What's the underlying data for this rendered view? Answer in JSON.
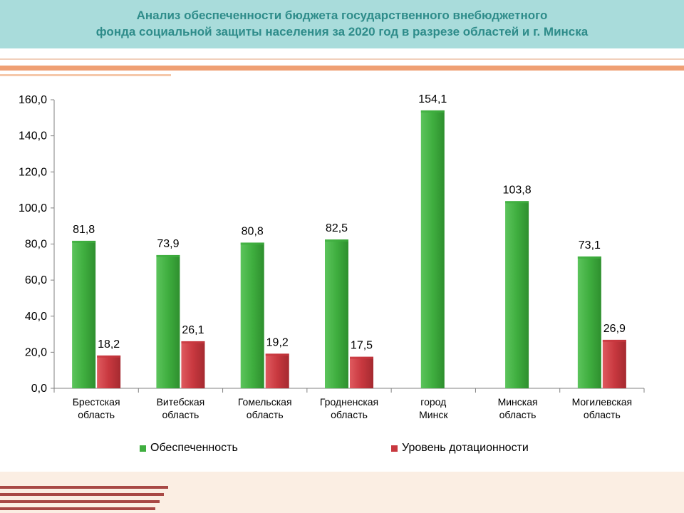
{
  "header": {
    "title_line1": "Анализ обеспеченности бюджета государственного внебюджетного",
    "title_line2": "фонда социальной защиты населения за 2020 год в разрезе областей и г. Минска"
  },
  "colors": {
    "header_bg": "#a9dcdb",
    "title_text": "#2e8c8a",
    "series_green": "#3fae3f",
    "series_red": "#c8383f",
    "accent_orange": "#ef9f73",
    "accent_dark_red": "#a84845"
  },
  "chart_data": {
    "type": "bar",
    "categories": [
      [
        "Брестская",
        "область"
      ],
      [
        "Витебская",
        "область"
      ],
      [
        "Гомельская",
        "область"
      ],
      [
        "Гродненская",
        "область"
      ],
      [
        "город",
        "Минск"
      ],
      [
        "Минская",
        "область"
      ],
      [
        "Могилевская",
        "область"
      ]
    ],
    "series": [
      {
        "name": "Обеспеченность",
        "color": "#3fae3f",
        "values": [
          81.8,
          73.9,
          80.8,
          82.5,
          154.1,
          103.8,
          73.1
        ],
        "labels": [
          "81,8",
          "73,9",
          "80,8",
          "82,5",
          "154,1",
          "103,8",
          "73,1"
        ]
      },
      {
        "name": "Уровень дотационности",
        "color": "#c8383f",
        "values": [
          18.2,
          26.1,
          19.2,
          17.5,
          null,
          null,
          26.9
        ],
        "labels": [
          "18,2",
          "26,1",
          "19,2",
          "17,5",
          null,
          null,
          "26,9"
        ]
      }
    ],
    "ylim": [
      0,
      160
    ],
    "yticks": [
      0,
      20,
      40,
      60,
      80,
      100,
      120,
      140,
      160
    ],
    "ytick_labels": [
      "0,0",
      "20,0",
      "40,0",
      "60,0",
      "80,0",
      "100,0",
      "120,0",
      "140,0",
      "160,0"
    ],
    "grid": false,
    "legend_position": "bottom"
  }
}
